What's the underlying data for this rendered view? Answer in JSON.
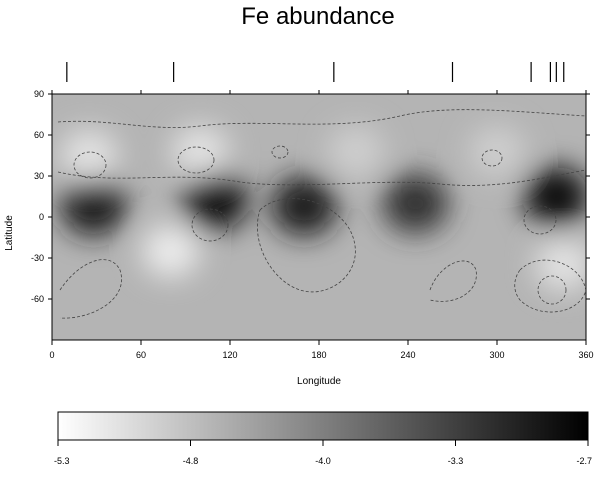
{
  "chart_data": {
    "type": "heatmap",
    "title": "Fe abundance",
    "xlabel": "Longitude",
    "ylabel": "Latitude",
    "xlim": [
      0,
      360
    ],
    "ylim": [
      -90,
      90
    ],
    "x_ticks": [
      "0",
      "60",
      "120",
      "180",
      "240",
      "300",
      "360"
    ],
    "y_ticks": [
      "90",
      "60",
      "30",
      "0",
      "-30",
      "-60"
    ],
    "phase_marks": [
      10,
      82,
      190,
      270,
      323,
      336,
      340,
      345
    ],
    "colorbar": {
      "ticks": [
        "-5.3",
        "-4.8",
        "-4.0",
        "-3.3",
        "-2.7"
      ],
      "range": [
        -5.3,
        -2.7
      ],
      "colors": [
        "#ffffff",
        "#000000"
      ]
    },
    "features": [
      {
        "kind": "high",
        "lon": 28,
        "lat": 8,
        "value": -3.0
      },
      {
        "kind": "high",
        "lon": 110,
        "lat": 12,
        "value": -2.8
      },
      {
        "kind": "high",
        "lon": 170,
        "lat": 8,
        "value": -3.0
      },
      {
        "kind": "high",
        "lon": 245,
        "lat": 10,
        "value": -3.2
      },
      {
        "kind": "high",
        "lon": 340,
        "lat": 15,
        "value": -2.8
      },
      {
        "kind": "low",
        "lon": 25,
        "lat": 45,
        "value": -5.0
      },
      {
        "kind": "low",
        "lon": 100,
        "lat": 48,
        "value": -5.0
      },
      {
        "kind": "low",
        "lon": 205,
        "lat": 48,
        "value": -4.8
      },
      {
        "kind": "low",
        "lon": 300,
        "lat": 48,
        "value": -4.8
      },
      {
        "kind": "low",
        "lon": 80,
        "lat": -25,
        "value": -5.1
      },
      {
        "kind": "low",
        "lon": 345,
        "lat": -35,
        "value": -5.0
      }
    ]
  }
}
